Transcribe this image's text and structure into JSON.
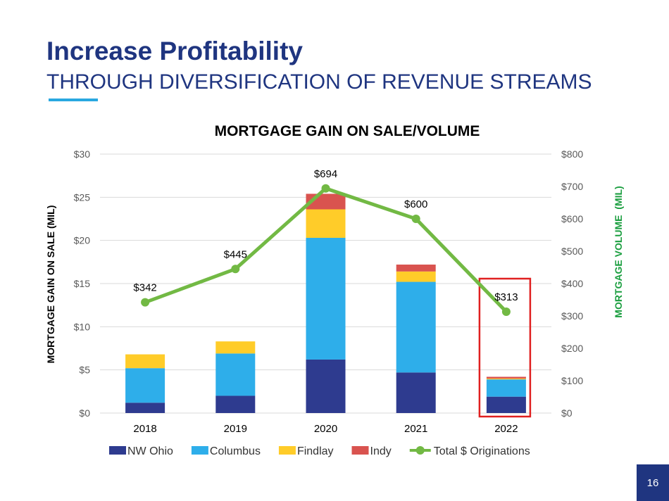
{
  "slide": {
    "title": "Increase Profitability",
    "subtitle": "THROUGH DIVERSIFICATION OF REVENUE STREAMS",
    "page_number": "16",
    "accent_color": "#29a8e0",
    "brand_color": "#1f3580"
  },
  "chart_data": {
    "type": "bar",
    "stacked": true,
    "title": "MORTGAGE GAIN ON SALE/VOLUME",
    "xlabel": "",
    "ylabel": "MORTGAGE GAIN ON SALE (MIL)",
    "y2label": "MORTGAGE VOLUME  (MIL)",
    "categories": [
      "2018",
      "2019",
      "2020",
      "2021",
      "2022"
    ],
    "ylim": [
      0,
      30
    ],
    "y_ticks": [
      0,
      5,
      10,
      15,
      20,
      25,
      30
    ],
    "y_tick_labels": [
      "$0",
      "$5",
      "$10",
      "$15",
      "$20",
      "$25",
      "$30"
    ],
    "y2lim": [
      0,
      800
    ],
    "y2_ticks": [
      0,
      100,
      200,
      300,
      400,
      500,
      600,
      700,
      800
    ],
    "y2_tick_labels": [
      "$0",
      "$100",
      "$200",
      "$300",
      "$400",
      "$500",
      "$600",
      "$700",
      "$800"
    ],
    "grid": true,
    "legend_position": "bottom",
    "series": [
      {
        "name": "NW Ohio",
        "color": "#2e3b8f",
        "values": [
          1.2,
          2.0,
          6.2,
          4.7,
          1.9
        ]
      },
      {
        "name": "Columbus",
        "color": "#2eaeea",
        "values": [
          4.0,
          4.9,
          14.1,
          10.5,
          2.0
        ]
      },
      {
        "name": "Findlay",
        "color": "#ffcc29",
        "values": [
          1.6,
          1.4,
          3.3,
          1.2,
          0.1
        ]
      },
      {
        "name": "Indy",
        "color": "#d9534f",
        "values": [
          0.0,
          0.0,
          1.8,
          0.8,
          0.2
        ]
      }
    ],
    "line": {
      "name": "Total $ Originations",
      "color": "#72b944",
      "axis": "right",
      "values": [
        342,
        445,
        694,
        600,
        313
      ],
      "labels": [
        "$342",
        "$445",
        "$694",
        "$600",
        "$313"
      ]
    },
    "highlight": {
      "category": "2022",
      "color": "#e02020"
    }
  }
}
